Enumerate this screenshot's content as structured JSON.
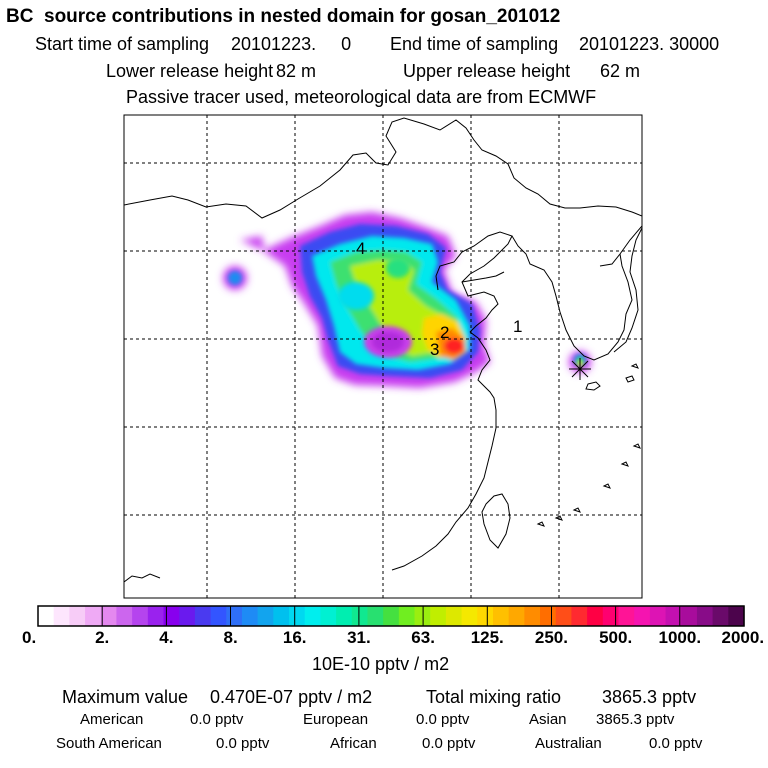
{
  "chart_data": {
    "type": "heatmap",
    "title": "BC  source contributions in nested domain for gosan_201012",
    "header": {
      "start_label": "Start time of sampling",
      "start_value": "20101223.     0",
      "end_label": "End time of sampling",
      "end_value": "20101223. 30000",
      "lower_label": "Lower release height",
      "lower_value": "82 m",
      "upper_label": "Upper release height",
      "upper_value": "62 m",
      "note": "Passive tracer used, meteorological data are from ECMWF"
    },
    "scale_ticks": [
      "0.",
      "2.",
      "4.",
      "8.",
      "16.",
      "31.",
      "63.",
      "125.",
      "250.",
      "500.",
      "1000.",
      "2000."
    ],
    "colorbar_units": "10E-10 pptv / m2",
    "colorbar_colors": [
      "#ffffff",
      "#fde6fd",
      "#f7ccf7",
      "#efaaf5",
      "#e488ef",
      "#cc66ee",
      "#b544ee",
      "#9a22ee",
      "#8800ee",
      "#6a1aee",
      "#4a3af0",
      "#3355ff",
      "#2f6ff7",
      "#1e8bf5",
      "#12a4ee",
      "#00c0ee",
      "#00d8f0",
      "#00eeee",
      "#00f0d2",
      "#00eeb0",
      "#10e890",
      "#28e070",
      "#45e040",
      "#70ee20",
      "#9aee10",
      "#c0ee00",
      "#dde800",
      "#f5e800",
      "#ffd800",
      "#ffc000",
      "#ffa800",
      "#ff8c00",
      "#ff6e00",
      "#ff4e18",
      "#ff2a30",
      "#ff0044",
      "#ff0070",
      "#ff1496",
      "#f514b0",
      "#dd14b4",
      "#c410b0",
      "#a80c9c",
      "#880c88",
      "#6a0a6a",
      "#4c044c"
    ],
    "source_labels": [
      "1",
      "2",
      "3",
      "4"
    ],
    "receptor": "gosan",
    "grid": true
  },
  "footer": {
    "max_label": "Maximum value",
    "max_value": "0.470E-07 pptv / m2",
    "total_label": "Total mixing ratio",
    "total_value": "3865.3 pptv",
    "regions": [
      {
        "name": "American",
        "value": "0.0 pptv"
      },
      {
        "name": "European",
        "value": "0.0 pptv"
      },
      {
        "name": "Asian",
        "value": "3865.3 pptv"
      },
      {
        "name": "South American",
        "value": "0.0 pptv"
      },
      {
        "name": "African",
        "value": "0.0 pptv"
      },
      {
        "name": "Australian",
        "value": "0.0 pptv"
      }
    ]
  }
}
